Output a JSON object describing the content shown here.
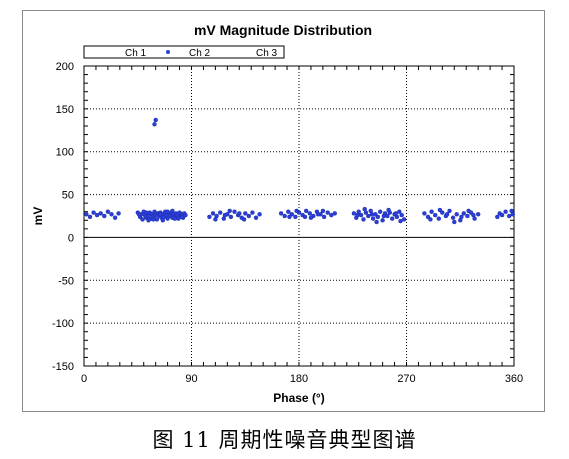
{
  "caption": "图 11  周期性噪音典型图谱",
  "chart_data": {
    "type": "scatter",
    "title": "mV Magnitude Distribution",
    "xlabel": "Phase (°)",
    "ylabel": "mV",
    "xlim": [
      0,
      360
    ],
    "ylim": [
      -150,
      200
    ],
    "xticks": [
      0,
      90,
      180,
      270,
      360
    ],
    "yticks": [
      200,
      150,
      100,
      50,
      0,
      -50,
      -100,
      -150
    ],
    "grid": true,
    "reference_line_y": 0,
    "legend": {
      "placement": "top",
      "entries": [
        "Ch 1",
        "Ch 2",
        "Ch 3"
      ]
    },
    "series": [
      {
        "name": "Ch 2",
        "color": "#2b3fd8",
        "points": [
          [
            2,
            27
          ],
          [
            5,
            24
          ],
          [
            8,
            29
          ],
          [
            11,
            26
          ],
          [
            14,
            28
          ],
          [
            17,
            25
          ],
          [
            20,
            30
          ],
          [
            23,
            27
          ],
          [
            26,
            23
          ],
          [
            29,
            28
          ],
          [
            45,
            29
          ],
          [
            47,
            24
          ],
          [
            48,
            27
          ],
          [
            49,
            21
          ],
          [
            50,
            30
          ],
          [
            51,
            26
          ],
          [
            52,
            23
          ],
          [
            53,
            28
          ],
          [
            54,
            25
          ],
          [
            55,
            29
          ],
          [
            56,
            22
          ],
          [
            57,
            27
          ],
          [
            58,
            24
          ],
          [
            59,
            30
          ],
          [
            60,
            26
          ],
          [
            61,
            21
          ],
          [
            62,
            28
          ],
          [
            63,
            25
          ],
          [
            64,
            29
          ],
          [
            65,
            23
          ],
          [
            66,
            27
          ],
          [
            67,
            24
          ],
          [
            68,
            30
          ],
          [
            69,
            26
          ],
          [
            70,
            22
          ],
          [
            71,
            28
          ],
          [
            72,
            25
          ],
          [
            73,
            29
          ],
          [
            74,
            23
          ],
          [
            75,
            27
          ],
          [
            76,
            24
          ],
          [
            77,
            28
          ],
          [
            78,
            26
          ],
          [
            79,
            22
          ],
          [
            80,
            29
          ],
          [
            81,
            25
          ],
          [
            82,
            27
          ],
          [
            83,
            23
          ],
          [
            84,
            28
          ],
          [
            85,
            26
          ],
          [
            46,
            27
          ],
          [
            52,
            29
          ],
          [
            58,
            21
          ],
          [
            64,
            27
          ],
          [
            70,
            30
          ],
          [
            76,
            22
          ],
          [
            82,
            24
          ],
          [
            54,
            20
          ],
          [
            66,
            20
          ],
          [
            74,
            31
          ],
          [
            59,
            132
          ],
          [
            60,
            137
          ],
          [
            105,
            24
          ],
          [
            108,
            28
          ],
          [
            111,
            25
          ],
          [
            114,
            29
          ],
          [
            117,
            22
          ],
          [
            120,
            27
          ],
          [
            123,
            24
          ],
          [
            126,
            30
          ],
          [
            129,
            26
          ],
          [
            132,
            23
          ],
          [
            135,
            28
          ],
          [
            138,
            25
          ],
          [
            141,
            29
          ],
          [
            144,
            23
          ],
          [
            147,
            27
          ],
          [
            110,
            21
          ],
          [
            122,
            31
          ],
          [
            134,
            21
          ],
          [
            118,
            26
          ],
          [
            130,
            28
          ],
          [
            165,
            28
          ],
          [
            168,
            25
          ],
          [
            171,
            30
          ],
          [
            174,
            27
          ],
          [
            177,
            24
          ],
          [
            180,
            29
          ],
          [
            183,
            26
          ],
          [
            186,
            31
          ],
          [
            189,
            28
          ],
          [
            192,
            25
          ],
          [
            195,
            30
          ],
          [
            198,
            27
          ],
          [
            201,
            24
          ],
          [
            204,
            29
          ],
          [
            207,
            26
          ],
          [
            210,
            28
          ],
          [
            178,
            31
          ],
          [
            190,
            23
          ],
          [
            200,
            31
          ],
          [
            172,
            24
          ],
          [
            185,
            24
          ],
          [
            196,
            27
          ],
          [
            226,
            28
          ],
          [
            228,
            23
          ],
          [
            230,
            30
          ],
          [
            232,
            26
          ],
          [
            234,
            21
          ],
          [
            236,
            29
          ],
          [
            238,
            25
          ],
          [
            240,
            31
          ],
          [
            242,
            22
          ],
          [
            244,
            27
          ],
          [
            246,
            24
          ],
          [
            248,
            30
          ],
          [
            250,
            20
          ],
          [
            252,
            28
          ],
          [
            254,
            25
          ],
          [
            256,
            29
          ],
          [
            258,
            22
          ],
          [
            260,
            27
          ],
          [
            262,
            24
          ],
          [
            264,
            30
          ],
          [
            266,
            26
          ],
          [
            268,
            21
          ],
          [
            235,
            33
          ],
          [
            245,
            18
          ],
          [
            255,
            32
          ],
          [
            265,
            19
          ],
          [
            229,
            26
          ],
          [
            241,
            27
          ],
          [
            251,
            25
          ],
          [
            261,
            28
          ],
          [
            285,
            28
          ],
          [
            288,
            24
          ],
          [
            291,
            30
          ],
          [
            294,
            26
          ],
          [
            297,
            22
          ],
          [
            300,
            29
          ],
          [
            303,
            25
          ],
          [
            306,
            31
          ],
          [
            309,
            23
          ],
          [
            312,
            27
          ],
          [
            315,
            20
          ],
          [
            318,
            28
          ],
          [
            321,
            25
          ],
          [
            324,
            29
          ],
          [
            327,
            22
          ],
          [
            330,
            27
          ],
          [
            298,
            32
          ],
          [
            310,
            18
          ],
          [
            322,
            31
          ],
          [
            290,
            21
          ],
          [
            304,
            27
          ],
          [
            316,
            24
          ],
          [
            326,
            26
          ],
          [
            346,
            24
          ],
          [
            348,
            28
          ],
          [
            350,
            26
          ],
          [
            353,
            30
          ],
          [
            356,
            25
          ],
          [
            358,
            31
          ],
          [
            359,
            27
          ]
        ]
      }
    ]
  }
}
